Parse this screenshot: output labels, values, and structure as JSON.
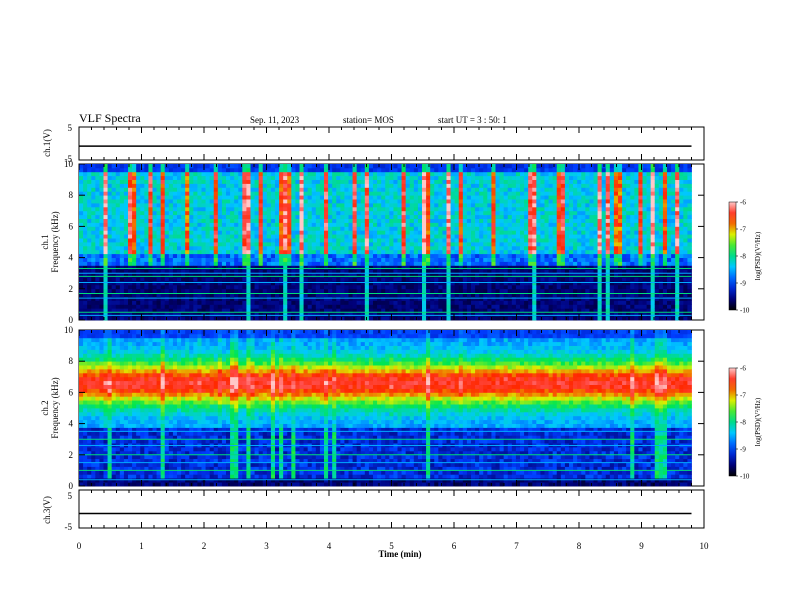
{
  "header": {
    "title": "VLF Spectra",
    "date": "Sep. 11, 2023",
    "station": "station= MOS",
    "start_time": "start UT =  3 : 50: 1"
  },
  "chart_data": [
    {
      "id": "ch1_waveform",
      "type": "line",
      "ylabel": "ch.1(V)",
      "ylim": [
        -5,
        5
      ],
      "yticks": [
        "5",
        "-5"
      ],
      "x": [
        0,
        10
      ],
      "y": [
        -0.8,
        -0.8
      ],
      "color": "#000000"
    },
    {
      "id": "ch1_spectrogram",
      "type": "heatmap",
      "ylabel": "ch.1",
      "ylabel2": "Frequency (kHz)",
      "ylim": [
        0,
        10
      ],
      "yticks": [
        "0",
        "2",
        "4",
        "6",
        "8",
        "10"
      ],
      "xlim": [
        0,
        9.8
      ],
      "profile": "Impulsive broadband emissions (spherics) from ~4 to 10 kHz, dark gap 0-4 kHz with narrowband lines",
      "narrowband_lines_khz": [
        0.3,
        0.5,
        1.4,
        1.7,
        2.4,
        2.8,
        3.0,
        3.3
      ],
      "colorbar": {
        "label": "log(PSD)(V²/Hz)",
        "min": -10,
        "max": -6,
        "ticks": [
          "-6",
          "-7",
          "-8",
          "-9",
          "-10"
        ]
      }
    },
    {
      "id": "ch2_spectrogram",
      "type": "heatmap",
      "ylabel": "ch.2",
      "ylabel2": "Frequency (kHz)",
      "ylim": [
        0,
        10
      ],
      "yticks": [
        "0",
        "2",
        "4",
        "6",
        "8",
        "10"
      ],
      "xlim": [
        0,
        9.8
      ],
      "profile": "Continuous intense band 5-8 kHz, weaker 1-4 kHz with narrowband lines",
      "narrowband_lines_khz": [
        0.4,
        1.0,
        1.5,
        2.0,
        2.6,
        3.0,
        3.5
      ],
      "colorbar": {
        "label": "log(PSD)(V²/Hz)",
        "min": -10,
        "max": -6,
        "ticks": [
          "-6",
          "-7",
          "-8",
          "-9",
          "-10"
        ]
      }
    },
    {
      "id": "ch3_waveform",
      "type": "line",
      "ylabel": "ch.3(V)",
      "ylim": [
        -5,
        5
      ],
      "yticks": [
        "5",
        "-5"
      ],
      "x": [
        0,
        10
      ],
      "y": [
        -1.2,
        -1.2
      ],
      "color": "#000000"
    }
  ],
  "x_axis": {
    "label": "Time (min)",
    "range": [
      0,
      10
    ],
    "ticks": [
      "0",
      "1",
      "2",
      "3",
      "4",
      "5",
      "6",
      "7",
      "8",
      "9",
      "10"
    ]
  }
}
